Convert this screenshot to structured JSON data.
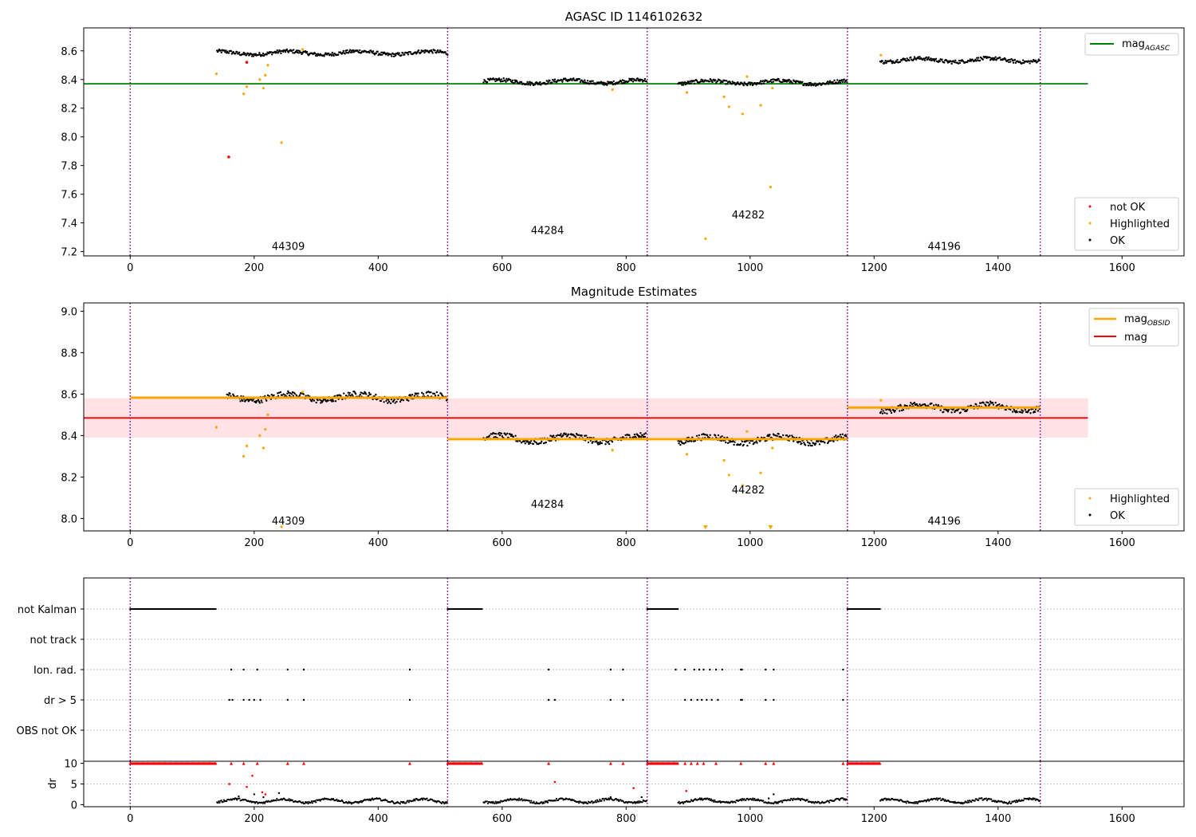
{
  "chart_data": [
    {
      "type": "scatter",
      "title": "AGASC ID 1146102632",
      "xlabel": "",
      "ylabel": "",
      "xlim": [
        -75,
        1700
      ],
      "ylim": [
        7.17,
        8.76
      ],
      "xticks": [
        0,
        200,
        400,
        600,
        800,
        1000,
        1200,
        1400,
        1600
      ],
      "yticks": [
        7.2,
        7.4,
        7.6,
        7.8,
        8.0,
        8.2,
        8.4,
        8.6
      ],
      "ytick_labels": [
        "7.2",
        "7.4",
        "7.6",
        "7.8",
        "8.0",
        "8.2",
        "8.4",
        "8.6"
      ],
      "grid": false,
      "obs_boundaries": [
        0,
        512,
        834,
        1157,
        1468
      ],
      "obs_labels": [
        {
          "text": "44309",
          "x": 255,
          "y": 7.24
        },
        {
          "text": "44284",
          "x": 673,
          "y": 7.35
        },
        {
          "text": "44282",
          "x": 997,
          "y": 7.46
        },
        {
          "text": "44196",
          "x": 1313,
          "y": 7.24
        }
      ],
      "lines": [
        {
          "name": "mag_AGASC",
          "color": "#008000",
          "x": [
            -75,
            1545
          ],
          "y": [
            8.37,
            8.37
          ]
        }
      ],
      "segments_ok": [
        {
          "x0": 140,
          "x1": 512,
          "y": 8.585,
          "color": "#000000"
        },
        {
          "x0": 570,
          "x1": 834,
          "y": 8.385,
          "color": "#000000"
        },
        {
          "x0": 884,
          "x1": 1157,
          "y": 8.38,
          "color": "#000000"
        },
        {
          "x0": 1210,
          "x1": 1468,
          "y": 8.535,
          "color": "#000000"
        }
      ],
      "points_highlighted": {
        "color": "#FFA500",
        "x": [
          139,
          183,
          188,
          209,
          215,
          218,
          222,
          244,
          278,
          778,
          898,
          958,
          966,
          988,
          1017,
          1033,
          1036,
          928,
          995,
          1211
        ],
        "y": [
          8.44,
          8.3,
          8.35,
          8.4,
          8.34,
          8.43,
          8.5,
          7.96,
          8.61,
          8.33,
          8.31,
          8.28,
          8.21,
          8.16,
          8.22,
          7.65,
          8.34,
          7.29,
          8.42,
          8.57
        ]
      },
      "points_not_ok": {
        "color": "#FF0000",
        "x": [
          159,
          188
        ],
        "y": [
          7.86,
          8.52
        ]
      },
      "legend": {
        "top_right": [
          {
            "label": "mag",
            "sub": "AGASC",
            "color": "#008000",
            "kind": "line"
          }
        ],
        "bottom_right": [
          {
            "label": "not OK",
            "color": "#FF0000",
            "kind": "marker"
          },
          {
            "label": "Highlighted",
            "color": "#FFA500",
            "kind": "marker"
          },
          {
            "label": "OK",
            "color": "#000000",
            "kind": "marker"
          }
        ]
      }
    },
    {
      "type": "scatter",
      "title": "Magnitude Estimates",
      "xlabel": "",
      "ylabel": "",
      "xlim": [
        -75,
        1700
      ],
      "ylim": [
        7.94,
        9.04
      ],
      "xticks": [
        0,
        200,
        400,
        600,
        800,
        1000,
        1200,
        1400,
        1600
      ],
      "yticks": [
        8.0,
        8.2,
        8.4,
        8.6,
        8.8,
        9.0
      ],
      "ytick_labels": [
        "8.0",
        "8.2",
        "8.4",
        "8.6",
        "8.8",
        "9.0"
      ],
      "grid": false,
      "obs_boundaries": [
        0,
        512,
        834,
        1157,
        1468
      ],
      "obs_labels": [
        {
          "text": "44309",
          "x": 255,
          "y": 7.99
        },
        {
          "text": "44284",
          "x": 673,
          "y": 8.07
        },
        {
          "text": "44282",
          "x": 997,
          "y": 8.14
        },
        {
          "text": "44196",
          "x": 1313,
          "y": 7.99
        }
      ],
      "band": {
        "x0": -75,
        "x1": 1545,
        "y0": 8.39,
        "y1": 8.58,
        "color": "#FFB6C1"
      },
      "lines": [
        {
          "name": "mag",
          "color": "#FF0000",
          "x": [
            -75,
            1545
          ],
          "y": [
            8.485,
            8.485
          ]
        }
      ],
      "obs_mag_lines": [
        {
          "x0": 0,
          "x1": 512,
          "y": 8.583
        },
        {
          "x0": 512,
          "x1": 1157,
          "y": 8.383
        },
        {
          "x0": 1157,
          "x1": 1468,
          "y": 8.535
        }
      ],
      "segments_ok": [
        {
          "x0": 155,
          "x1": 512,
          "y": 8.585,
          "color": "#000000"
        },
        {
          "x0": 570,
          "x1": 834,
          "y": 8.385,
          "color": "#000000"
        },
        {
          "x0": 884,
          "x1": 1157,
          "y": 8.38,
          "color": "#000000"
        },
        {
          "x0": 1210,
          "x1": 1468,
          "y": 8.535,
          "color": "#000000"
        }
      ],
      "points_highlighted": {
        "color": "#FFA500",
        "x": [
          139,
          183,
          188,
          209,
          215,
          218,
          222,
          244,
          278,
          778,
          898,
          958,
          966,
          988,
          1017,
          1036,
          995,
          1211
        ],
        "y": [
          8.44,
          8.3,
          8.35,
          8.4,
          8.34,
          8.43,
          8.5,
          7.96,
          8.61,
          8.33,
          8.31,
          8.28,
          8.21,
          8.16,
          8.22,
          8.34,
          8.42,
          8.57
        ]
      },
      "triangles": {
        "color": "#FFA500",
        "x": [
          928,
          1033
        ]
      },
      "legend": {
        "top_right": [
          {
            "label": "mag",
            "sub": "OBSID",
            "color": "#FFA500",
            "kind": "line"
          },
          {
            "label": "mag",
            "sub": "",
            "color": "#FF0000",
            "kind": "line"
          }
        ],
        "bottom_right": [
          {
            "label": "Highlighted",
            "color": "#FFA500",
            "kind": "marker"
          },
          {
            "label": "OK",
            "color": "#000000",
            "kind": "marker"
          }
        ]
      }
    },
    {
      "type": "scatter",
      "title": "",
      "xlabel": "",
      "ylabel": "",
      "xlim": [
        -75,
        1700
      ],
      "categories": [
        "not Kalman",
        "not track",
        "Ion. rad.",
        "dr > 5",
        "OBS not OK"
      ],
      "obs_boundaries": [
        0,
        512,
        834,
        1157,
        1468
      ],
      "flag_ranges": {
        "not Kalman": [
          [
            0,
            138
          ],
          [
            512,
            568
          ],
          [
            834,
            884
          ],
          [
            1157,
            1210
          ]
        ],
        "not track": [],
        "Ion. rad.": [
          163,
          183,
          205,
          254,
          280,
          451,
          675,
          775,
          795,
          880,
          895,
          910,
          918,
          925,
          935,
          945,
          955,
          985,
          987,
          1025,
          1038,
          1150
        ],
        "dr > 5": [
          160,
          165,
          183,
          192,
          200,
          210,
          254,
          280,
          451,
          675,
          685,
          775,
          795,
          895,
          905,
          915,
          922,
          930,
          938,
          948,
          985,
          987,
          1025,
          1038,
          1150
        ],
        "OBS not OK": []
      }
    },
    {
      "type": "scatter",
      "title": "",
      "xlabel": "",
      "ylabel": "dr",
      "xlim": [
        -75,
        1700
      ],
      "ylim": [
        -0.5,
        10.5
      ],
      "xticks": [
        0,
        200,
        400,
        600,
        800,
        1000,
        1200,
        1400,
        1600
      ],
      "yticks": [
        0,
        5,
        10
      ],
      "ytick_labels": [
        "0",
        "5",
        "10"
      ],
      "obs_boundaries": [
        0,
        512,
        834,
        1157,
        1468
      ],
      "capped_ranges": [
        [
          0,
          138
        ],
        [
          512,
          568
        ],
        [
          834,
          884
        ],
        [
          1157,
          1210
        ]
      ],
      "capped_points": [
        163,
        183,
        205,
        254,
        280,
        451,
        675,
        775,
        795,
        895,
        905,
        915,
        925,
        945,
        985,
        1025,
        1038,
        1150
      ],
      "red_points": {
        "x": [
          160,
          188,
          197,
          213,
          218,
          685,
          812,
          897
        ],
        "y": [
          5.0,
          4.3,
          7.0,
          3.0,
          2.5,
          5.5,
          4.0,
          3.3
        ]
      },
      "ok_segments": [
        [
          140,
          512
        ],
        [
          570,
          834
        ],
        [
          884,
          1157
        ],
        [
          1210,
          1468
        ]
      ],
      "ok_spikes": {
        "x": [
          175,
          200,
          215,
          240,
          775,
          825,
          1030,
          1038
        ],
        "y": [
          2.0,
          2.5,
          1.8,
          2.8,
          1.8,
          1.8,
          1.5,
          2.5
        ]
      }
    }
  ]
}
